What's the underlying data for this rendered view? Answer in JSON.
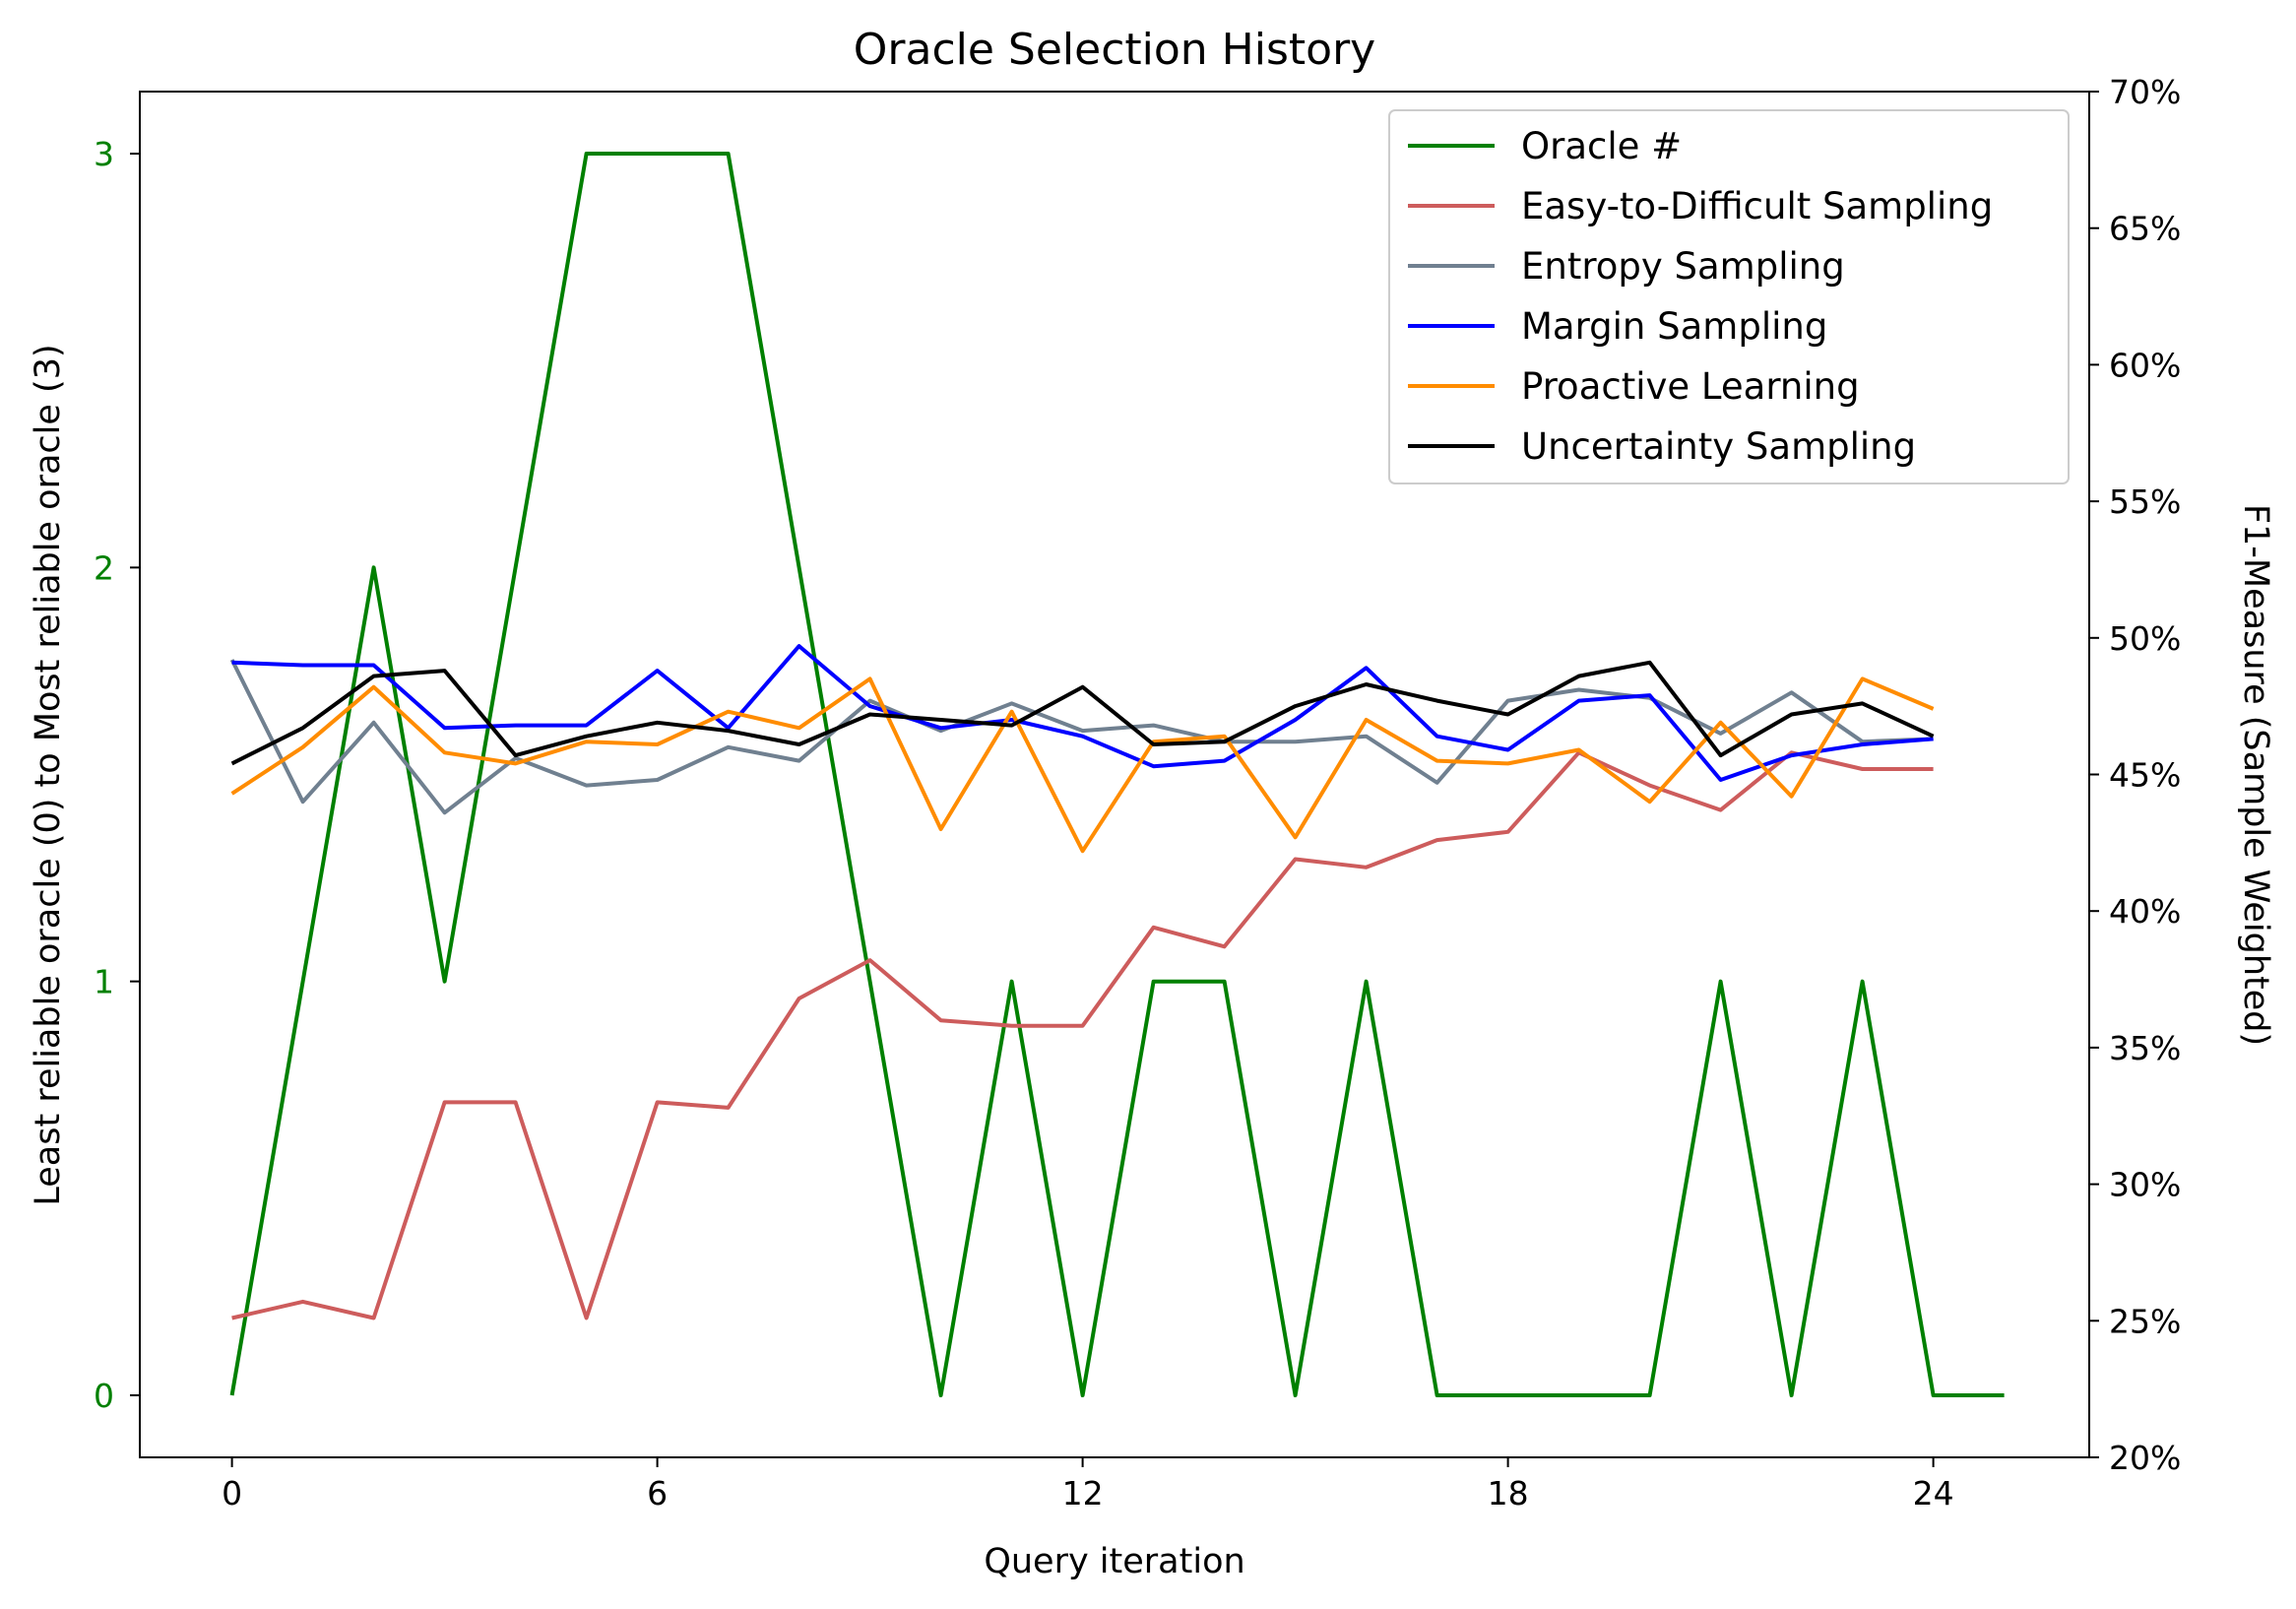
{
  "chart_data": {
    "type": "line",
    "title": "Oracle Selection History",
    "xlabel": "Query iteration",
    "ylabel_left": "Least reliable oracle (0) to Most reliable oracle (3)",
    "ylabel_right": "F1-Measure (Sample Weighted)",
    "xlim": [
      -1.3,
      26.2
    ],
    "x_ticks": [
      0,
      6,
      12,
      18,
      24
    ],
    "ylim_left": [
      -0.15,
      3.15
    ],
    "y_ticks_left": [
      "0",
      "1",
      "2",
      "3"
    ],
    "ylim_right": [
      0.2,
      0.7
    ],
    "y_ticks_right": [
      "20%",
      "25%",
      "30%",
      "35%",
      "40%",
      "45%",
      "50%",
      "55%",
      "60%",
      "65%",
      "70%"
    ],
    "legend_position": "upper right",
    "grid": false,
    "left_tick_color": "#008000",
    "oracle_series": {
      "name": "Oracle #",
      "color": "#008000",
      "axis": "left",
      "x": [
        0,
        1,
        2,
        3,
        4,
        5,
        6,
        7,
        8,
        9,
        10,
        11,
        12,
        13,
        14,
        15,
        16,
        17,
        18,
        19,
        20,
        21,
        22,
        23,
        24,
        25
      ],
      "values": [
        0,
        1,
        2,
        1,
        2,
        3,
        3,
        3,
        2,
        1,
        0,
        1,
        0,
        1,
        1,
        0,
        1,
        0,
        0,
        0,
        0,
        1,
        0,
        1,
        0,
        0
      ]
    },
    "series": [
      {
        "name": "Easy-to-Difficult Sampling",
        "color": "#cd5c5c",
        "axis": "right",
        "values": [
          0.251,
          0.257,
          0.251,
          0.33,
          0.33,
          0.251,
          0.33,
          0.328,
          0.368,
          0.382,
          0.36,
          0.358,
          0.358,
          0.394,
          0.387,
          0.419,
          0.416,
          0.426,
          0.429,
          0.458,
          0.446,
          0.437,
          0.458,
          0.452,
          0.452
        ]
      },
      {
        "name": "Entropy Sampling",
        "color": "#708090",
        "axis": "right",
        "values": [
          0.492,
          0.44,
          0.469,
          0.436,
          0.456,
          0.446,
          0.448,
          0.46,
          0.455,
          0.477,
          0.466,
          0.476,
          0.466,
          0.468,
          0.462,
          0.462,
          0.464,
          0.447,
          0.477,
          0.481,
          0.478,
          0.465,
          0.48,
          0.462,
          0.463
        ]
      },
      {
        "name": "Margin Sampling",
        "color": "#0000ff",
        "axis": "right",
        "values": [
          0.491,
          0.49,
          0.49,
          0.467,
          0.468,
          0.468,
          0.488,
          0.467,
          0.497,
          0.475,
          0.467,
          0.47,
          0.464,
          0.453,
          0.455,
          0.47,
          0.489,
          0.464,
          0.459,
          0.477,
          0.479,
          0.448,
          0.457,
          0.461,
          0.463
        ]
      },
      {
        "name": "Proactive Learning",
        "color": "#ff8c00",
        "axis": "right",
        "values": [
          0.443,
          0.46,
          0.482,
          0.458,
          0.454,
          0.462,
          0.461,
          0.473,
          0.467,
          0.485,
          0.43,
          0.473,
          0.422,
          0.462,
          0.464,
          0.427,
          0.47,
          0.455,
          0.454,
          0.459,
          0.44,
          0.469,
          0.442,
          0.485,
          0.474
        ]
      },
      {
        "name": "Uncertainty Sampling",
        "color": "#000000",
        "axis": "right",
        "values": [
          0.454,
          0.467,
          0.486,
          0.488,
          0.457,
          0.464,
          0.469,
          0.466,
          0.461,
          0.472,
          0.47,
          0.468,
          0.482,
          0.461,
          0.462,
          0.475,
          0.483,
          0.477,
          0.472,
          0.486,
          0.491,
          0.457,
          0.472,
          0.476,
          0.464
        ]
      }
    ]
  }
}
